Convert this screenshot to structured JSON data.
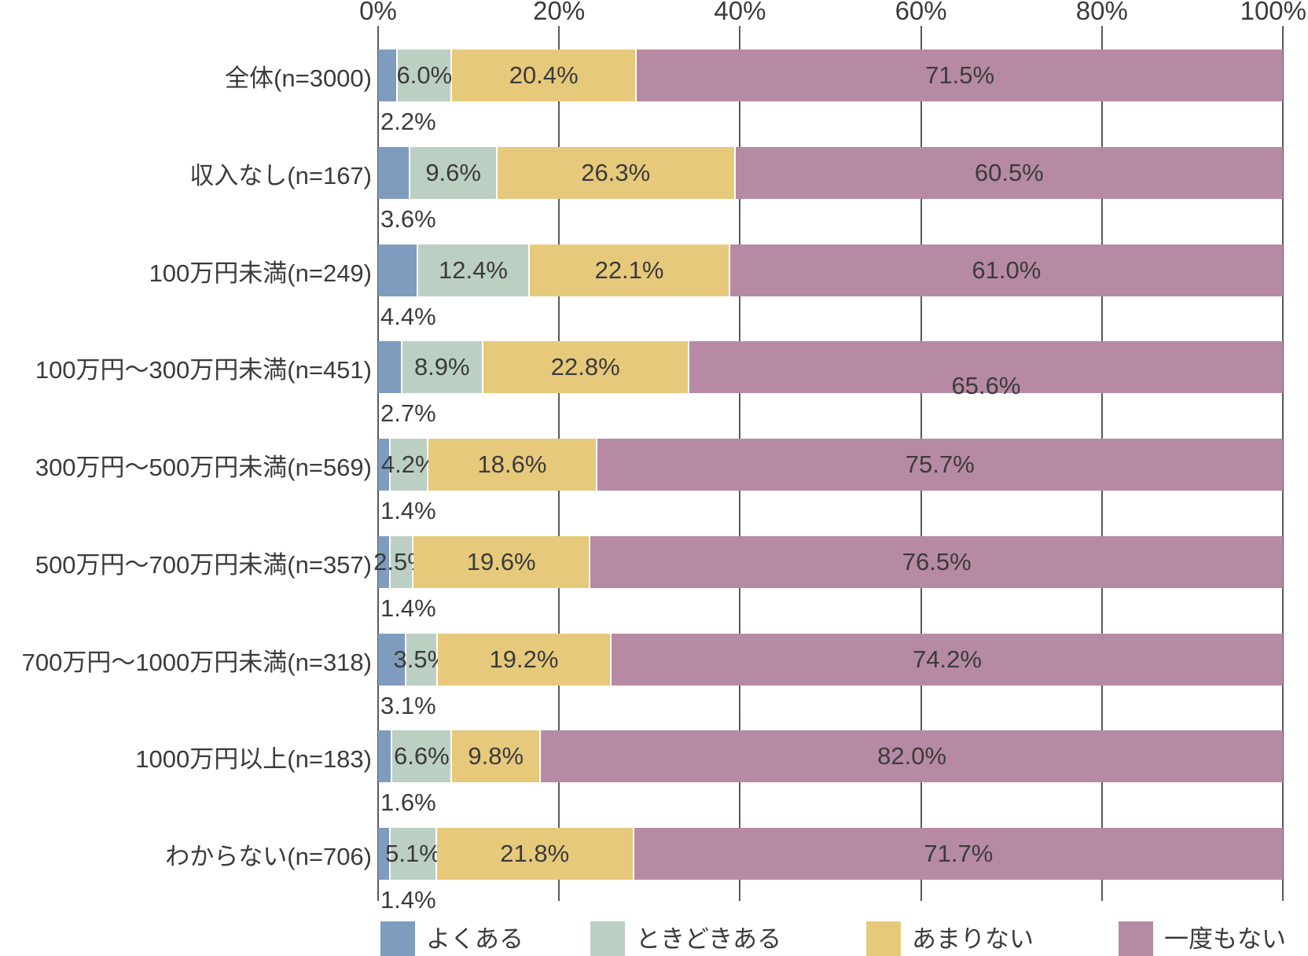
{
  "chart_data": {
    "type": "bar",
    "variant": "horizontal-stacked-100pct",
    "title": "",
    "categories": [
      "全体(n=3000)",
      "収入なし(n=167)",
      "100万円未満(n=249)",
      "100万円〜300万円未満(n=451)",
      "300万円〜500万円未満(n=569)",
      "500万円〜700万円未満(n=357)",
      "700万円〜1000万円未満(n=318)",
      "1000万円以上(n=183)",
      "わからない(n=706)"
    ],
    "series": [
      {
        "name": "よくある",
        "color": "#7f9cbe",
        "label_placement": "below-bar-left",
        "values": [
          2.2,
          3.6,
          4.4,
          2.7,
          1.4,
          1.4,
          3.1,
          1.6,
          1.4
        ]
      },
      {
        "name": "ときどきある",
        "color": "#bccfc3",
        "label_placement": "inside-center",
        "values": [
          6.0,
          9.6,
          12.4,
          8.9,
          4.2,
          2.5,
          3.5,
          6.6,
          5.1
        ]
      },
      {
        "name": "あまりない",
        "color": "#e6c97b",
        "label_placement": "inside-center",
        "values": [
          20.4,
          26.3,
          22.1,
          22.8,
          18.6,
          19.6,
          19.2,
          9.8,
          21.8
        ]
      },
      {
        "name": "一度もない",
        "color": "#b78aa3",
        "label_placement": "inside-center",
        "values": [
          71.5,
          60.5,
          61.0,
          65.6,
          75.7,
          76.5,
          74.2,
          82.0,
          71.7
        ]
      }
    ],
    "label_format": "one-decimal-percent",
    "offset_labels": [
      {
        "row": 3,
        "series": 3,
        "note": "65.6% label shifted toward bar bottom"
      }
    ],
    "x_axis": {
      "position": "top",
      "range": [
        0,
        100
      ],
      "tick_labels": [
        "0%",
        "20%",
        "40%",
        "60%",
        "80%",
        "100%"
      ]
    },
    "grid": true,
    "legend": {
      "position": "bottom",
      "entries": [
        "よくある",
        "ときどきある",
        "あまりない",
        "一度もない"
      ]
    }
  },
  "colors": {
    "background": "#ffffff",
    "text": "#3b3b3b",
    "gridline": "#5a5a5a",
    "separator": "#ffffff"
  }
}
